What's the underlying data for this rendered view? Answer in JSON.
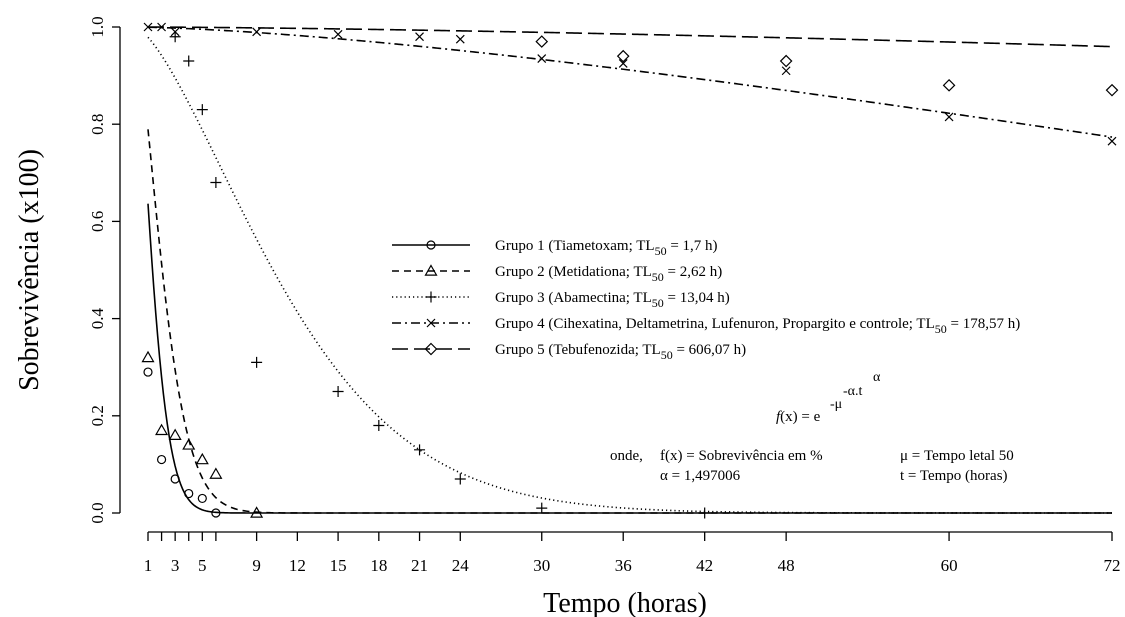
{
  "chart_data": {
    "type": "scatter",
    "title": "",
    "xlabel": "Tempo (horas)",
    "ylabel": "Sobrevivência (x100)",
    "xlim": [
      1,
      72
    ],
    "ylim": [
      0,
      1
    ],
    "x_ticks": [
      1,
      2,
      3,
      4,
      5,
      6,
      9,
      12,
      15,
      18,
      21,
      24,
      30,
      36,
      42,
      48,
      60,
      72
    ],
    "x_tick_labels": [
      {
        "x": 1,
        "label": "1"
      },
      {
        "x": 3,
        "label": "3"
      },
      {
        "x": 5,
        "label": "5"
      },
      {
        "x": 9,
        "label": "9"
      },
      {
        "x": 12,
        "label": "12"
      },
      {
        "x": 15,
        "label": "15"
      },
      {
        "x": 18,
        "label": "18"
      },
      {
        "x": 21,
        "label": "21"
      },
      {
        "x": 24,
        "label": "24"
      },
      {
        "x": 30,
        "label": "30"
      },
      {
        "x": 36,
        "label": "36"
      },
      {
        "x": 42,
        "label": "42"
      },
      {
        "x": 48,
        "label": "48"
      },
      {
        "x": 60,
        "label": "60"
      },
      {
        "x": 72,
        "label": "72"
      }
    ],
    "y_ticks": [
      {
        "y": 0.0,
        "label": "0.0"
      },
      {
        "y": 0.2,
        "label": "0.2"
      },
      {
        "y": 0.4,
        "label": "0.4"
      },
      {
        "y": 0.6,
        "label": "0.6"
      },
      {
        "y": 0.8,
        "label": "0.8"
      },
      {
        "y": 1.0,
        "label": "1.0"
      }
    ],
    "grid": false,
    "legend_position": "center",
    "alpha": 1.497006,
    "series": [
      {
        "name": "Grupo 1 (Tiametoxam; TL50 = 1,7 h)",
        "legend_prefix": "Grupo 1 (Tiametoxam; TL",
        "legend_suffix": " = 1,7 h)",
        "mu": 1.7,
        "line_style": "solid",
        "marker": "circle",
        "points": [
          [
            1,
            0.29
          ],
          [
            2,
            0.11
          ],
          [
            3,
            0.07
          ],
          [
            4,
            0.04
          ],
          [
            5,
            0.03
          ],
          [
            6,
            0.0
          ]
        ]
      },
      {
        "name": "Grupo 2 (Metidationa; TL50 = 2,62 h)",
        "legend_prefix": "Grupo 2 (Metidationa; TL",
        "legend_suffix": " = 2,62 h)",
        "mu": 2.62,
        "line_style": "dashed",
        "marker": "triangle",
        "points": [
          [
            1,
            0.32
          ],
          [
            2,
            0.17
          ],
          [
            3,
            0.16
          ],
          [
            4,
            0.14
          ],
          [
            5,
            0.11
          ],
          [
            6,
            0.08
          ],
          [
            9,
            0.0
          ]
        ]
      },
      {
        "name": "Grupo 3 (Abamectina; TL50 = 13,04 h)",
        "legend_prefix": "Grupo 3 (Abamectina; TL",
        "legend_suffix": " = 13,04 h)",
        "mu": 13.04,
        "line_style": "dotted",
        "marker": "plus",
        "points": [
          [
            3,
            0.98
          ],
          [
            4,
            0.93
          ],
          [
            5,
            0.83
          ],
          [
            6,
            0.68
          ],
          [
            9,
            0.31
          ],
          [
            15,
            0.25
          ],
          [
            18,
            0.18
          ],
          [
            21,
            0.13
          ],
          [
            24,
            0.07
          ],
          [
            30,
            0.01
          ],
          [
            42,
            0.0
          ]
        ]
      },
      {
        "name": "Grupo 4 (Cihexatina, Deltametrina, Lufenuron, Propargito e controle; TL50 = 178,57 h)",
        "legend_prefix": "Grupo 4 (Cihexatina, Deltametrina, Lufenuron, Propargito e controle; TL",
        "legend_suffix": " = 178,57 h)",
        "mu": 178.57,
        "line_style": "dashdot",
        "marker": "cross",
        "points": [
          [
            1,
            1.0
          ],
          [
            2,
            1.0
          ],
          [
            3,
            0.99
          ],
          [
            9,
            0.99
          ],
          [
            15,
            0.985
          ],
          [
            21,
            0.98
          ],
          [
            24,
            0.975
          ],
          [
            30,
            0.935
          ],
          [
            36,
            0.925
          ],
          [
            48,
            0.91
          ],
          [
            60,
            0.815
          ],
          [
            72,
            0.765
          ]
        ]
      },
      {
        "name": "Grupo 5 (Tebufenozida; TL50 = 606,07 h)",
        "legend_prefix": "Grupo 5 (Tebufenozida; TL",
        "legend_suffix": " = 606,07 h)",
        "mu": 606.07,
        "line_style": "longdash",
        "marker": "diamond",
        "points": [
          [
            30,
            0.97
          ],
          [
            36,
            0.94
          ],
          [
            48,
            0.93
          ],
          [
            60,
            0.88
          ],
          [
            72,
            0.87
          ]
        ]
      }
    ],
    "legend_subscript": "50",
    "annotation": {
      "formula_lhs": "f(x) = e",
      "formula_exp_1": "-μ",
      "formula_exp_2": "-α.t",
      "formula_exp_3": "α",
      "onde": "onde,",
      "def1": "f(x) = Sobrevivência em %",
      "def2": "α = 1,497006",
      "def3": "μ = Tempo letal 50",
      "def4": "t = Tempo (horas)"
    }
  }
}
